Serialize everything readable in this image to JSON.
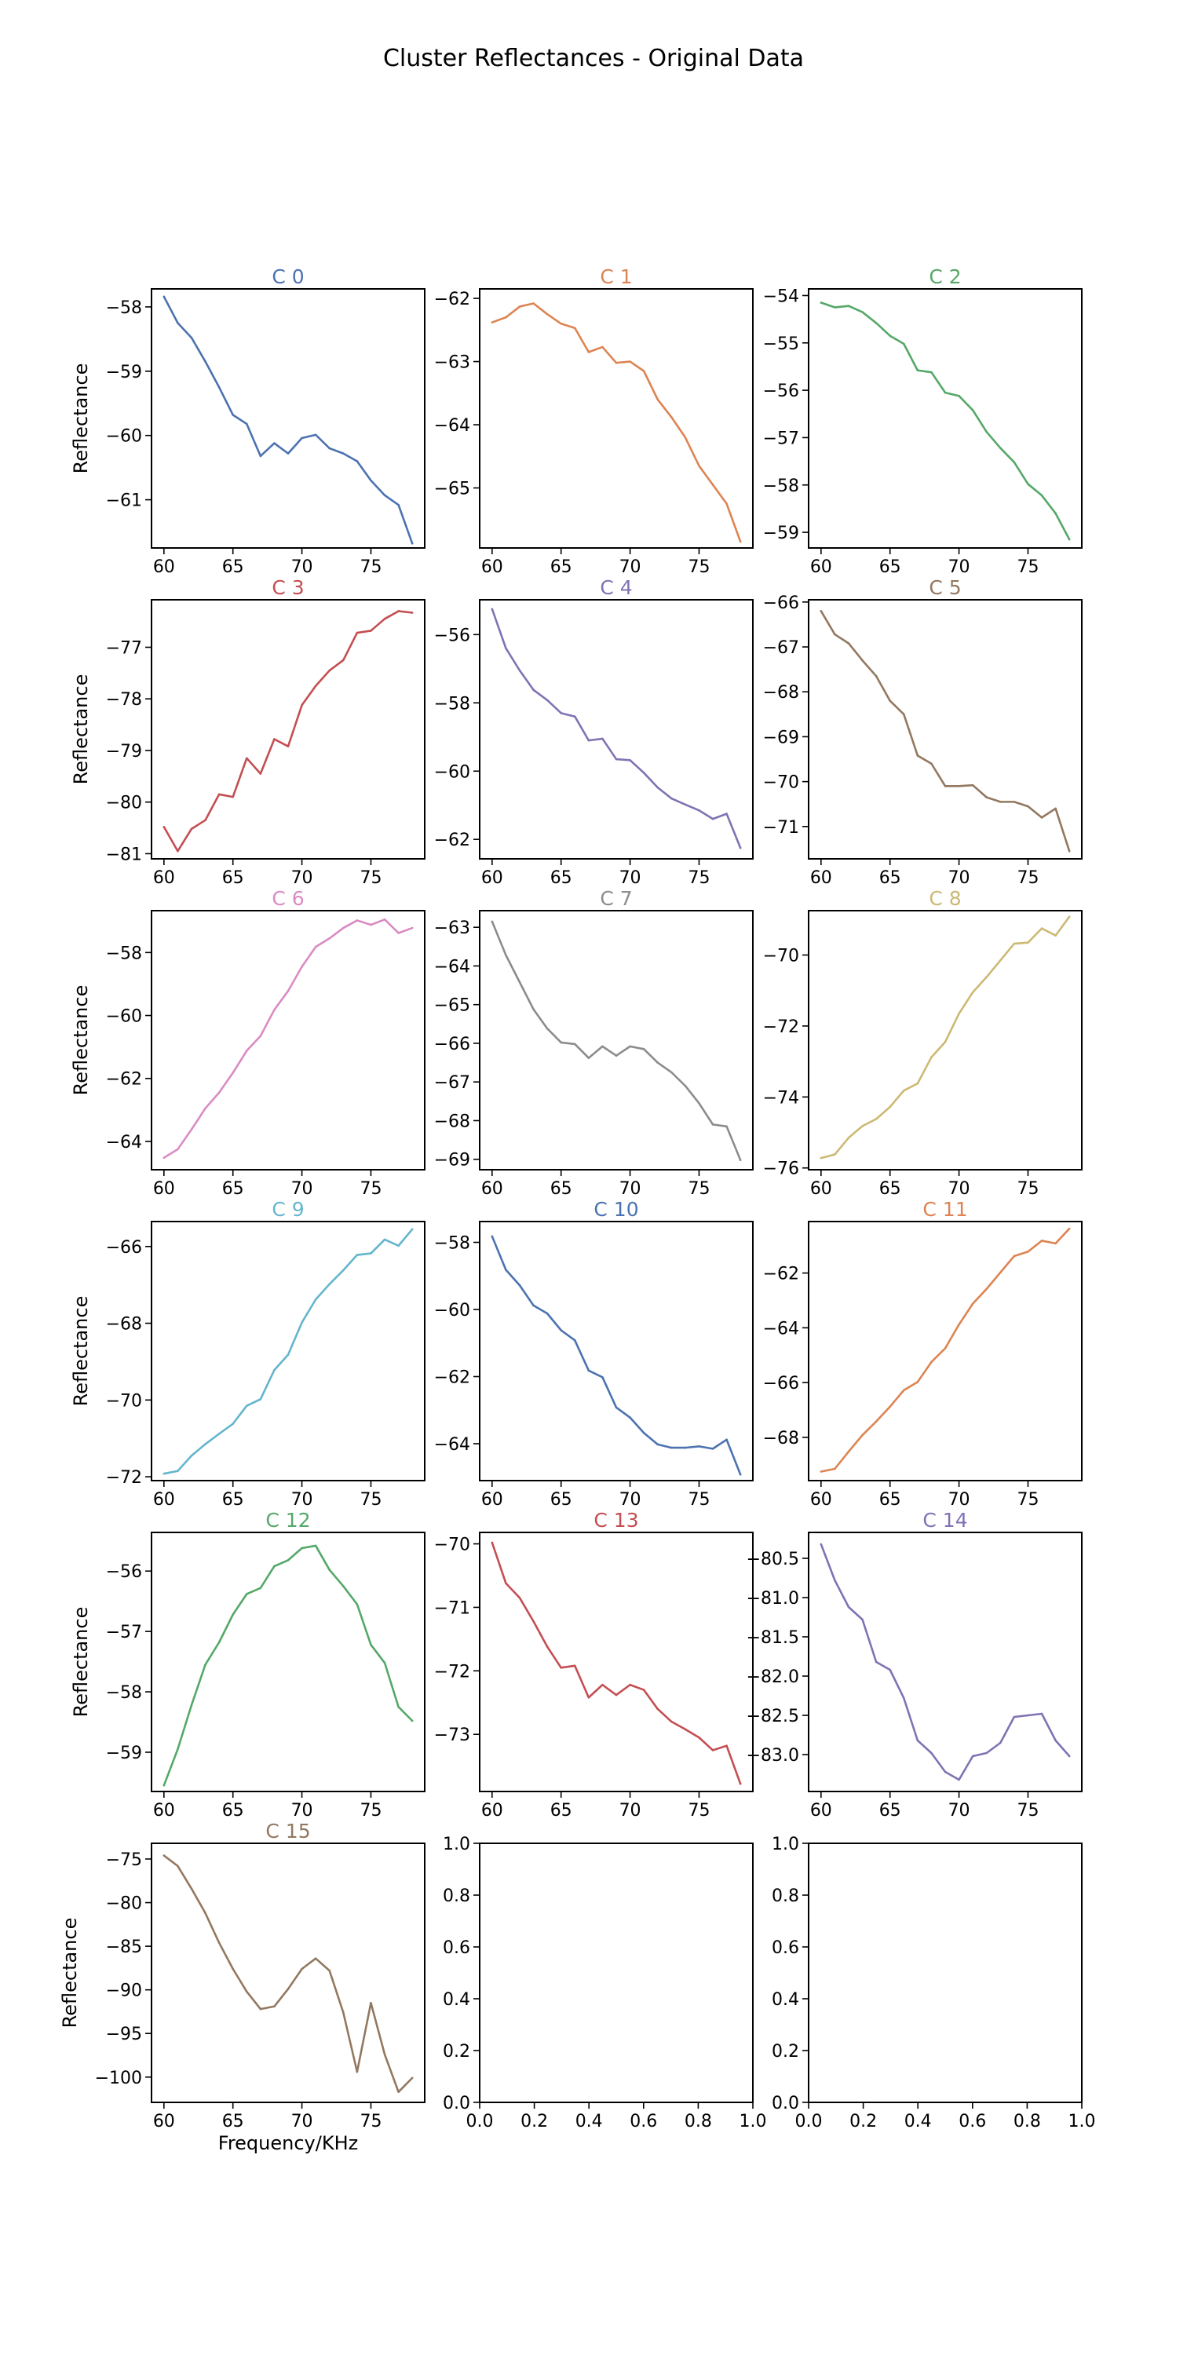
{
  "figure": {
    "title": "Cluster Reflectances - Original Data"
  },
  "chart_data": [
    {
      "type": "line",
      "title": "C 0",
      "color": "#4c72b0",
      "ylabel": "Reflectance",
      "xlabel": "",
      "xlim": [
        59.1,
        78.9
      ],
      "xticks": [
        60,
        65,
        70,
        75
      ],
      "ylim": [
        -61.75,
        -57.72
      ],
      "yticks": [
        -58,
        -59,
        -60,
        -61
      ],
      "x": [
        60,
        61,
        62,
        63,
        64,
        65,
        66,
        67,
        68,
        69,
        70,
        71,
        72,
        73,
        74,
        75,
        76,
        77,
        78
      ],
      "values": [
        -57.84,
        -58.25,
        -58.48,
        -58.85,
        -59.25,
        -59.68,
        -59.82,
        -60.32,
        -60.12,
        -60.28,
        -60.04,
        -59.99,
        -60.2,
        -60.28,
        -60.4,
        -60.7,
        -60.93,
        -61.08,
        -61.68
      ]
    },
    {
      "type": "line",
      "title": "C 1",
      "color": "#dd8452",
      "ylabel": "",
      "xlabel": "",
      "xlim": [
        59.1,
        78.9
      ],
      "xticks": [
        60,
        65,
        70,
        75
      ],
      "ylim": [
        -65.95,
        -61.85
      ],
      "yticks": [
        -62,
        -63,
        -64,
        -65
      ],
      "x": [
        60,
        61,
        62,
        63,
        64,
        65,
        66,
        67,
        68,
        69,
        70,
        71,
        72,
        73,
        74,
        75,
        76,
        77,
        78
      ],
      "values": [
        -62.38,
        -62.3,
        -62.13,
        -62.08,
        -62.25,
        -62.4,
        -62.47,
        -62.85,
        -62.77,
        -63.02,
        -63,
        -63.15,
        -63.6,
        -63.88,
        -64.2,
        -64.65,
        -64.95,
        -65.25,
        -65.85
      ]
    },
    {
      "type": "line",
      "title": "C 2",
      "color": "#55a868",
      "ylabel": "",
      "xlabel": "",
      "xlim": [
        59.1,
        78.9
      ],
      "xticks": [
        60,
        65,
        70,
        75
      ],
      "ylim": [
        -59.33,
        -53.86
      ],
      "yticks": [
        -54,
        -55,
        -56,
        -57,
        -58,
        -59
      ],
      "x": [
        60,
        61,
        62,
        63,
        64,
        65,
        66,
        67,
        68,
        69,
        70,
        71,
        72,
        73,
        74,
        75,
        76,
        77,
        78
      ],
      "values": [
        -54.15,
        -54.25,
        -54.22,
        -54.35,
        -54.58,
        -54.85,
        -55.02,
        -55.58,
        -55.62,
        -56.05,
        -56.12,
        -56.42,
        -56.88,
        -57.22,
        -57.52,
        -57.98,
        -58.22,
        -58.6,
        -59.15
      ]
    },
    {
      "type": "line",
      "title": "C 3",
      "color": "#c44e52",
      "ylabel": "Reflectance",
      "xlabel": "",
      "xlim": [
        59.1,
        78.9
      ],
      "xticks": [
        60,
        65,
        70,
        75
      ],
      "ylim": [
        -81.1,
        -76.08
      ],
      "yticks": [
        -77,
        -78,
        -79,
        -80,
        -81
      ],
      "x": [
        60,
        61,
        62,
        63,
        64,
        65,
        66,
        67,
        68,
        69,
        70,
        71,
        72,
        73,
        74,
        75,
        76,
        77,
        78
      ],
      "values": [
        -80.48,
        -80.95,
        -80.52,
        -80.35,
        -79.85,
        -79.9,
        -79.15,
        -79.45,
        -78.78,
        -78.92,
        -78.12,
        -77.75,
        -77.45,
        -77.25,
        -76.72,
        -76.68,
        -76.45,
        -76.3,
        -76.33
      ]
    },
    {
      "type": "line",
      "title": "C 4",
      "color": "#8172b3",
      "ylabel": "",
      "xlabel": "",
      "xlim": [
        59.1,
        78.9
      ],
      "xticks": [
        60,
        65,
        70,
        75
      ],
      "ylim": [
        -62.57,
        -54.98
      ],
      "yticks": [
        -56,
        -58,
        -60,
        -62
      ],
      "x": [
        60,
        61,
        62,
        63,
        64,
        65,
        66,
        67,
        68,
        69,
        70,
        71,
        72,
        73,
        74,
        75,
        76,
        77,
        78
      ],
      "values": [
        -55.25,
        -56.4,
        -57.05,
        -57.62,
        -57.92,
        -58.3,
        -58.4,
        -59.1,
        -59.05,
        -59.65,
        -59.68,
        -60.05,
        -60.48,
        -60.8,
        -60.98,
        -61.15,
        -61.4,
        -61.25,
        -62.25
      ]
    },
    {
      "type": "line",
      "title": "C 5",
      "color": "#937860",
      "ylabel": "",
      "xlabel": "",
      "xlim": [
        59.1,
        78.9
      ],
      "xticks": [
        60,
        65,
        70,
        75
      ],
      "ylim": [
        -71.72,
        -65.95
      ],
      "yticks": [
        -66,
        -67,
        -68,
        -69,
        -70,
        -71
      ],
      "x": [
        60,
        61,
        62,
        63,
        64,
        65,
        66,
        67,
        68,
        69,
        70,
        71,
        72,
        73,
        74,
        75,
        76,
        77,
        78
      ],
      "values": [
        -66.2,
        -66.72,
        -66.92,
        -67.3,
        -67.65,
        -68.2,
        -68.5,
        -69.42,
        -69.6,
        -70.1,
        -70.1,
        -70.08,
        -70.35,
        -70.45,
        -70.45,
        -70.55,
        -70.8,
        -70.6,
        -71.55
      ]
    },
    {
      "type": "line",
      "title": "C 6",
      "color": "#da8bc3",
      "ylabel": "Reflectance",
      "xlabel": "",
      "xlim": [
        59.1,
        78.9
      ],
      "xticks": [
        60,
        65,
        70,
        75
      ],
      "ylim": [
        -64.9,
        -56.67
      ],
      "yticks": [
        -58,
        -60,
        -62,
        -64
      ],
      "x": [
        60,
        61,
        62,
        63,
        64,
        65,
        66,
        67,
        68,
        69,
        70,
        71,
        72,
        73,
        74,
        75,
        76,
        77,
        78
      ],
      "values": [
        -64.52,
        -64.25,
        -63.62,
        -62.95,
        -62.45,
        -61.82,
        -61.12,
        -60.65,
        -59.82,
        -59.22,
        -58.45,
        -57.82,
        -57.55,
        -57.22,
        -56.98,
        -57.12,
        -56.95,
        -57.38,
        -57.22
      ]
    },
    {
      "type": "line",
      "title": "C 7",
      "color": "#8c8c8c",
      "ylabel": "",
      "xlabel": "",
      "xlim": [
        59.1,
        78.9
      ],
      "xticks": [
        60,
        65,
        70,
        75
      ],
      "ylim": [
        -69.27,
        -62.57
      ],
      "yticks": [
        -63,
        -64,
        -65,
        -66,
        -67,
        -68,
        -69
      ],
      "x": [
        60,
        61,
        62,
        63,
        64,
        65,
        66,
        67,
        68,
        69,
        70,
        71,
        72,
        73,
        74,
        75,
        76,
        77,
        78
      ],
      "values": [
        -62.85,
        -63.72,
        -64.42,
        -65.12,
        -65.62,
        -65.98,
        -66.02,
        -66.38,
        -66.08,
        -66.32,
        -66.08,
        -66.15,
        -66.5,
        -66.75,
        -67.1,
        -67.55,
        -68.1,
        -68.15,
        -69.02
      ]
    },
    {
      "type": "line",
      "title": "C 8",
      "color": "#ccb974",
      "ylabel": "",
      "xlabel": "",
      "xlim": [
        59.1,
        78.9
      ],
      "xticks": [
        60,
        65,
        70,
        75
      ],
      "ylim": [
        -76.05,
        -68.75
      ],
      "yticks": [
        -70,
        -72,
        -74,
        -76
      ],
      "x": [
        60,
        61,
        62,
        63,
        64,
        65,
        66,
        67,
        68,
        69,
        70,
        71,
        72,
        73,
        74,
        75,
        76,
        77,
        78
      ],
      "values": [
        -75.72,
        -75.62,
        -75.15,
        -74.82,
        -74.62,
        -74.28,
        -73.82,
        -73.62,
        -72.88,
        -72.45,
        -71.65,
        -71.05,
        -70.62,
        -70.15,
        -69.68,
        -69.65,
        -69.25,
        -69.45,
        -68.92
      ]
    },
    {
      "type": "line",
      "title": "C 9",
      "color": "#64b5cd",
      "ylabel": "Reflectance",
      "xlabel": "",
      "xlim": [
        59.1,
        78.9
      ],
      "xticks": [
        60,
        65,
        70,
        75
      ],
      "ylim": [
        -72.1,
        -65.35
      ],
      "yticks": [
        -66,
        -68,
        -70,
        -72
      ],
      "x": [
        60,
        61,
        62,
        63,
        64,
        65,
        66,
        67,
        68,
        69,
        70,
        71,
        72,
        73,
        74,
        75,
        76,
        77,
        78
      ],
      "values": [
        -71.92,
        -71.85,
        -71.45,
        -71.15,
        -70.88,
        -70.62,
        -70.15,
        -69.98,
        -69.22,
        -68.82,
        -67.98,
        -67.38,
        -66.98,
        -66.62,
        -66.22,
        -66.18,
        -65.82,
        -65.98,
        -65.55
      ]
    },
    {
      "type": "line",
      "title": "C 10",
      "color": "#4c72b0",
      "ylabel": "",
      "xlabel": "",
      "xlim": [
        59.1,
        78.9
      ],
      "xticks": [
        60,
        65,
        70,
        75
      ],
      "ylim": [
        -65.1,
        -57.38
      ],
      "yticks": [
        -58,
        -60,
        -62,
        -64
      ],
      "x": [
        60,
        61,
        62,
        63,
        64,
        65,
        66,
        67,
        68,
        69,
        70,
        71,
        72,
        73,
        74,
        75,
        76,
        77,
        78
      ],
      "values": [
        -57.82,
        -58.82,
        -59.28,
        -59.88,
        -60.12,
        -60.62,
        -60.92,
        -61.82,
        -62.02,
        -62.92,
        -63.22,
        -63.68,
        -64.02,
        -64.12,
        -64.12,
        -64.08,
        -64.15,
        -63.88,
        -64.92
      ]
    },
    {
      "type": "line",
      "title": "C 11",
      "color": "#dd8452",
      "ylabel": "",
      "xlabel": "",
      "xlim": [
        59.1,
        78.9
      ],
      "xticks": [
        60,
        65,
        70,
        75
      ],
      "ylim": [
        -69.58,
        -60.12
      ],
      "yticks": [
        -62,
        -64,
        -66,
        -68
      ],
      "x": [
        60,
        61,
        62,
        63,
        64,
        65,
        66,
        67,
        68,
        69,
        70,
        71,
        72,
        73,
        74,
        75,
        76,
        77,
        78
      ],
      "values": [
        -69.25,
        -69.15,
        -68.52,
        -67.92,
        -67.42,
        -66.88,
        -66.28,
        -65.98,
        -65.25,
        -64.75,
        -63.88,
        -63.12,
        -62.58,
        -61.98,
        -61.38,
        -61.22,
        -60.82,
        -60.92,
        -60.38
      ]
    },
    {
      "type": "line",
      "title": "C 12",
      "color": "#55a868",
      "ylabel": "Reflectance",
      "xlabel": "",
      "xlim": [
        59.1,
        78.9
      ],
      "xticks": [
        60,
        65,
        70,
        75
      ],
      "ylim": [
        -59.65,
        -55.36
      ],
      "yticks": [
        -56,
        -57,
        -58,
        -59
      ],
      "x": [
        60,
        61,
        62,
        63,
        64,
        65,
        66,
        67,
        68,
        69,
        70,
        71,
        72,
        73,
        74,
        75,
        76,
        77,
        78
      ],
      "values": [
        -59.55,
        -58.95,
        -58.22,
        -57.55,
        -57.18,
        -56.72,
        -56.38,
        -56.28,
        -55.92,
        -55.82,
        -55.62,
        -55.58,
        -55.98,
        -56.25,
        -56.55,
        -57.22,
        -57.52,
        -58.25,
        -58.48
      ]
    },
    {
      "type": "line",
      "title": "C 13",
      "color": "#c44e52",
      "ylabel": "",
      "xlabel": "",
      "xlim": [
        59.1,
        78.9
      ],
      "xticks": [
        60,
        65,
        70,
        75
      ],
      "ylim": [
        -73.9,
        -69.82
      ],
      "yticks": [
        -70,
        -71,
        -72,
        -73
      ],
      "x": [
        60,
        61,
        62,
        63,
        64,
        65,
        66,
        67,
        68,
        69,
        70,
        71,
        72,
        73,
        74,
        75,
        76,
        77,
        78
      ],
      "values": [
        -69.98,
        -70.62,
        -70.85,
        -71.22,
        -71.62,
        -71.95,
        -71.92,
        -72.42,
        -72.22,
        -72.38,
        -72.22,
        -72.3,
        -72.6,
        -72.8,
        -72.92,
        -73.05,
        -73.25,
        -73.18,
        -73.78
      ]
    },
    {
      "type": "line",
      "title": "C 14",
      "color": "#8172b3",
      "ylabel": "",
      "xlabel": "",
      "xlim": [
        59.1,
        78.9
      ],
      "xticks": [
        60,
        65,
        70,
        75
      ],
      "ylim": [
        -83.47,
        -80.17
      ],
      "yticks": [
        -80.5,
        -81.0,
        -81.5,
        -82.0,
        -82.5,
        -83.0
      ],
      "ytick_labels": [
        "-80.5",
        "-81.0",
        "-81.5",
        "-82.0",
        "-82.5",
        "-83.0"
      ],
      "x": [
        60,
        61,
        62,
        63,
        64,
        65,
        66,
        67,
        68,
        69,
        70,
        71,
        72,
        73,
        74,
        75,
        76,
        77,
        78
      ],
      "values": [
        -80.32,
        -80.78,
        -81.12,
        -81.28,
        -81.82,
        -81.92,
        -82.28,
        -82.82,
        -82.98,
        -83.22,
        -83.32,
        -83.02,
        -82.98,
        -82.85,
        -82.52,
        -82.5,
        -82.48,
        -82.82,
        -83.02
      ]
    },
    {
      "type": "line",
      "title": "C 15",
      "color": "#937860",
      "ylabel": "Reflectance",
      "xlabel": "Frequency/KHz",
      "xlim": [
        59.1,
        78.9
      ],
      "xticks": [
        60,
        65,
        70,
        75
      ],
      "ylim": [
        -102.9,
        -73.2
      ],
      "yticks": [
        -75,
        -80,
        -85,
        -90,
        -95,
        -100
      ],
      "x": [
        60,
        61,
        62,
        63,
        64,
        65,
        66,
        67,
        68,
        69,
        70,
        71,
        72,
        73,
        74,
        75,
        76,
        77,
        78
      ],
      "values": [
        -74.6,
        -75.8,
        -78.4,
        -81.2,
        -84.6,
        -87.6,
        -90.2,
        -92.2,
        -91.9,
        -89.9,
        -87.6,
        -86.4,
        -87.8,
        -92.6,
        -99.4,
        -91.5,
        -97.4,
        -101.7,
        -100.1
      ]
    },
    {
      "type": "empty",
      "title": "",
      "xlim": [
        0,
        1
      ],
      "ylim": [
        0,
        1
      ],
      "xtick_labels": [
        "0.0",
        "0.2",
        "0.4",
        "0.6",
        "0.8",
        "1.0"
      ],
      "ytick_labels": [
        "0.0",
        "0.2",
        "0.4",
        "0.6",
        "0.8",
        "1.0"
      ]
    },
    {
      "type": "empty",
      "title": "",
      "xlim": [
        0,
        1
      ],
      "ylim": [
        0,
        1
      ],
      "xtick_labels": [
        "0.0",
        "0.2",
        "0.4",
        "0.6",
        "0.8",
        "1.0"
      ],
      "ytick_labels": [
        "0.0",
        "0.2",
        "0.4",
        "0.6",
        "0.8",
        "1.0"
      ]
    }
  ]
}
